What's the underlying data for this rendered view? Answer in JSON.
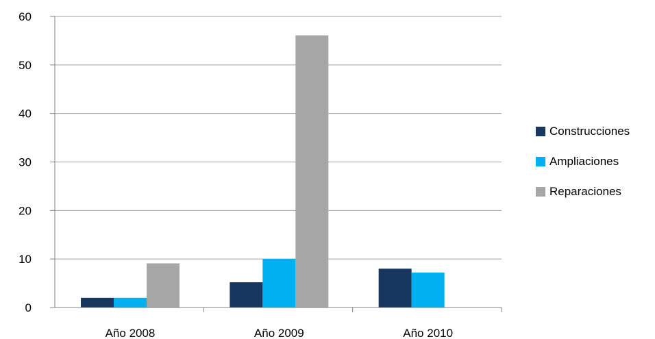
{
  "chart_data": {
    "type": "bar",
    "title": "",
    "xlabel": "",
    "ylabel": "",
    "categories": [
      "Año 2008",
      "Año 2009",
      "Año 2010"
    ],
    "series": [
      {
        "name": "Construcciones",
        "color": "#17375e",
        "values": [
          2,
          5.2,
          8
        ]
      },
      {
        "name": "Ampliaciones",
        "color": "#00b0f0",
        "values": [
          2,
          10,
          7.2
        ]
      },
      {
        "name": "Reparaciones",
        "color": "#a6a6a6",
        "values": [
          9.1,
          56.1,
          0
        ]
      }
    ],
    "yticks": [
      "0",
      "10",
      "20",
      "30",
      "40",
      "50",
      "60"
    ],
    "ylim": [
      0,
      60
    ],
    "grid": true,
    "legend_position": "right"
  }
}
